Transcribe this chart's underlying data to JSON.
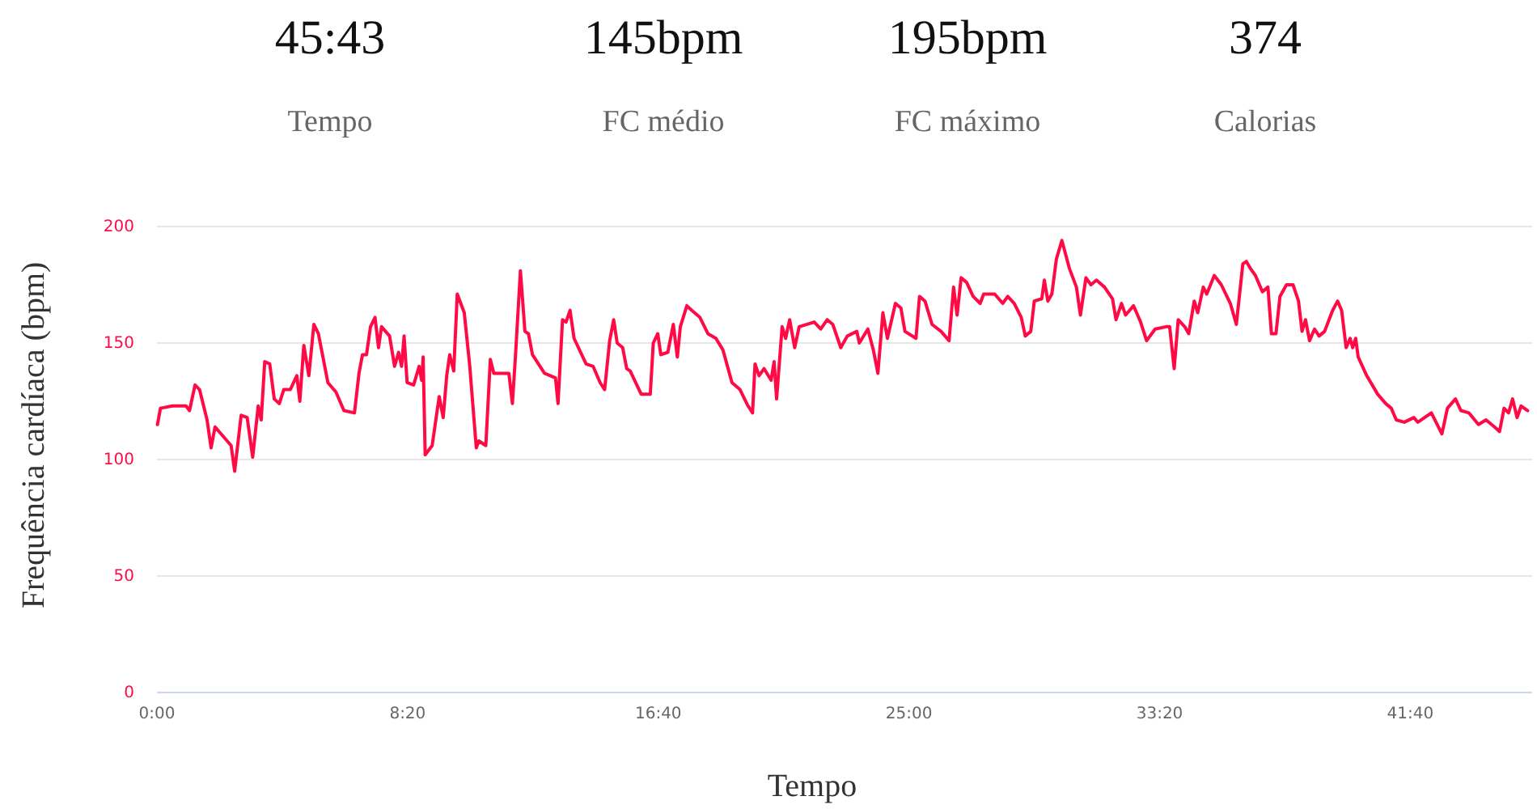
{
  "chart_data": {
    "type": "line",
    "xlabel": "Tempo",
    "ylabel": "Frequência cardíaca (bpm)",
    "annotations": [
      "45:43",
      "Tempo",
      "145bpm",
      "FC médio",
      "195bpm",
      "FC máximo",
      "374",
      "Calorias"
    ],
    "xlim": [
      0,
      2743
    ],
    "xticks": [
      {
        "value": 0,
        "label": "0:00"
      },
      {
        "value": 500,
        "label": "8:20"
      },
      {
        "value": 1000,
        "label": "16:40"
      },
      {
        "value": 1500,
        "label": "25:00"
      },
      {
        "value": 2000,
        "label": "33:20"
      },
      {
        "value": 2500,
        "label": "41:40"
      }
    ],
    "ylim": [
      0,
      200
    ],
    "yticks": [
      0,
      50,
      100,
      150,
      200
    ],
    "grid": "y",
    "marker": "none",
    "line_style": "solid",
    "series": [
      {
        "color": "#ff0a45",
        "x": [
          1,
          7,
          31,
          58,
          65,
          76,
          85,
          100,
          108,
          116,
          148,
          155,
          168,
          180,
          191,
          202,
          208,
          215,
          225,
          234,
          244,
          253,
          266,
          279,
          285,
          293,
          303,
          313,
          322,
          341,
          357,
          373,
          394,
          403,
          410,
          418,
          426,
          435,
          442,
          448,
          464,
          474,
          482,
          488,
          493,
          499,
          512,
          523,
          528,
          531,
          535,
          549,
          563,
          571,
          578,
          584,
          592,
          599,
          613,
          624,
          637,
          642,
          656,
          665,
          672,
          702,
          709,
          715,
          725,
          734,
          741,
          749,
          773,
          795,
          800,
          809,
          816,
          824,
          832,
          856,
          870,
          884,
          893,
          903,
          911,
          918,
          929,
          937,
          944,
          966,
          984,
          990,
          999,
          1005,
          1019,
          1030,
          1038,
          1044,
          1057,
          1067,
          1083,
          1099,
          1115,
          1129,
          1147,
          1163,
          1179,
          1188,
          1193,
          1201,
          1211,
          1225,
          1231,
          1236,
          1247,
          1254,
          1262,
          1272,
          1281,
          1311,
          1324,
          1337,
          1348,
          1364,
          1377,
          1396,
          1401,
          1418,
          1429,
          1438,
          1448,
          1457,
          1473,
          1484,
          1492,
          1514,
          1521,
          1532,
          1546,
          1564,
          1580,
          1589,
          1596,
          1604,
          1615,
          1628,
          1642,
          1649,
          1671,
          1687,
          1697,
          1710,
          1724,
          1732,
          1743,
          1750,
          1765,
          1770,
          1777,
          1785,
          1794,
          1805,
          1820,
          1834,
          1842,
          1853,
          1863,
          1874,
          1890,
          1906,
          1913,
          1924,
          1932,
          1948,
          1962,
          1974,
          1991,
          2013,
          2020,
          2029,
          2037,
          2050,
          2058,
          2069,
          2076,
          2087,
          2094,
          2109,
          2123,
          2141,
          2153,
          2166,
          2173,
          2181,
          2191,
          2205,
          2216,
          2223,
          2232,
          2240,
          2253,
          2266,
          2277,
          2284,
          2291,
          2299,
          2309,
          2318,
          2329,
          2345,
          2355,
          2363,
          2372,
          2380,
          2385,
          2391,
          2396,
          2413,
          2435,
          2451,
          2462,
          2472,
          2488,
          2507,
          2515,
          2542,
          2563,
          2574,
          2590,
          2601,
          2617,
          2636,
          2651,
          2668,
          2678,
          2687,
          2696,
          2704,
          2713,
          2721,
          2734
        ],
        "values": [
          115,
          122,
          123,
          123,
          121,
          132,
          130,
          117,
          105,
          114,
          106,
          95,
          119,
          118,
          101,
          123,
          117,
          142,
          141,
          126,
          124,
          130,
          130,
          136,
          125,
          149,
          136,
          158,
          154,
          133,
          129,
          121,
          120,
          137,
          145,
          145,
          157,
          161,
          148,
          157,
          153,
          140,
          146,
          140,
          153,
          133,
          132,
          140,
          134,
          144,
          102,
          106,
          127,
          118,
          136,
          145,
          138,
          171,
          163,
          140,
          105,
          108,
          106,
          143,
          137,
          137,
          124,
          144,
          181,
          155,
          154,
          145,
          137,
          135,
          124,
          160,
          159,
          164,
          152,
          141,
          140,
          133,
          130,
          151,
          160,
          150,
          148,
          139,
          138,
          128,
          128,
          150,
          154,
          145,
          146,
          158,
          144,
          157,
          166,
          164,
          161,
          154,
          152,
          147,
          133,
          130,
          123,
          120,
          141,
          136,
          139,
          134,
          142,
          126,
          157,
          152,
          160,
          148,
          157,
          159,
          156,
          160,
          158,
          148,
          153,
          155,
          150,
          156,
          147,
          137,
          163,
          152,
          167,
          165,
          155,
          152,
          170,
          168,
          158,
          155,
          151,
          174,
          162,
          178,
          176,
          170,
          167,
          171,
          171,
          167,
          170,
          167,
          161,
          153,
          155,
          168,
          169,
          177,
          168,
          171,
          186,
          194,
          182,
          174,
          162,
          178,
          175,
          177,
          174,
          169,
          160,
          167,
          162,
          166,
          159,
          151,
          156,
          157,
          157,
          139,
          160,
          157,
          154,
          168,
          163,
          174,
          171,
          179,
          175,
          167,
          158,
          184,
          185,
          182,
          179,
          172,
          174,
          154,
          154,
          170,
          175,
          175,
          168,
          155,
          160,
          151,
          156,
          153,
          155,
          164,
          168,
          164,
          148,
          152,
          148,
          152,
          144,
          136,
          128,
          124,
          122,
          117,
          116,
          118,
          116,
          120,
          111,
          122,
          126,
          121,
          120,
          115,
          117,
          114,
          112,
          122,
          120,
          126,
          118,
          123,
          121
        ]
      }
    ]
  }
}
